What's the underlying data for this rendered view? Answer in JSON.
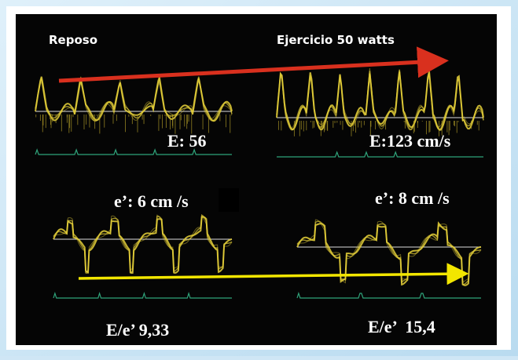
{
  "header": {
    "left": "Reposo",
    "right": "Ejercicio 50 watts"
  },
  "panels": [
    {
      "label": "E: 56"
    },
    {
      "label": "E:123 cm/s"
    },
    {
      "label": "e’: 6 cm /s"
    },
    {
      "label": "e’: 8 cm /s"
    }
  ],
  "ratios": [
    {
      "label": "E/e’ 9,33"
    },
    {
      "label": "E/e’  15,4"
    }
  ]
}
